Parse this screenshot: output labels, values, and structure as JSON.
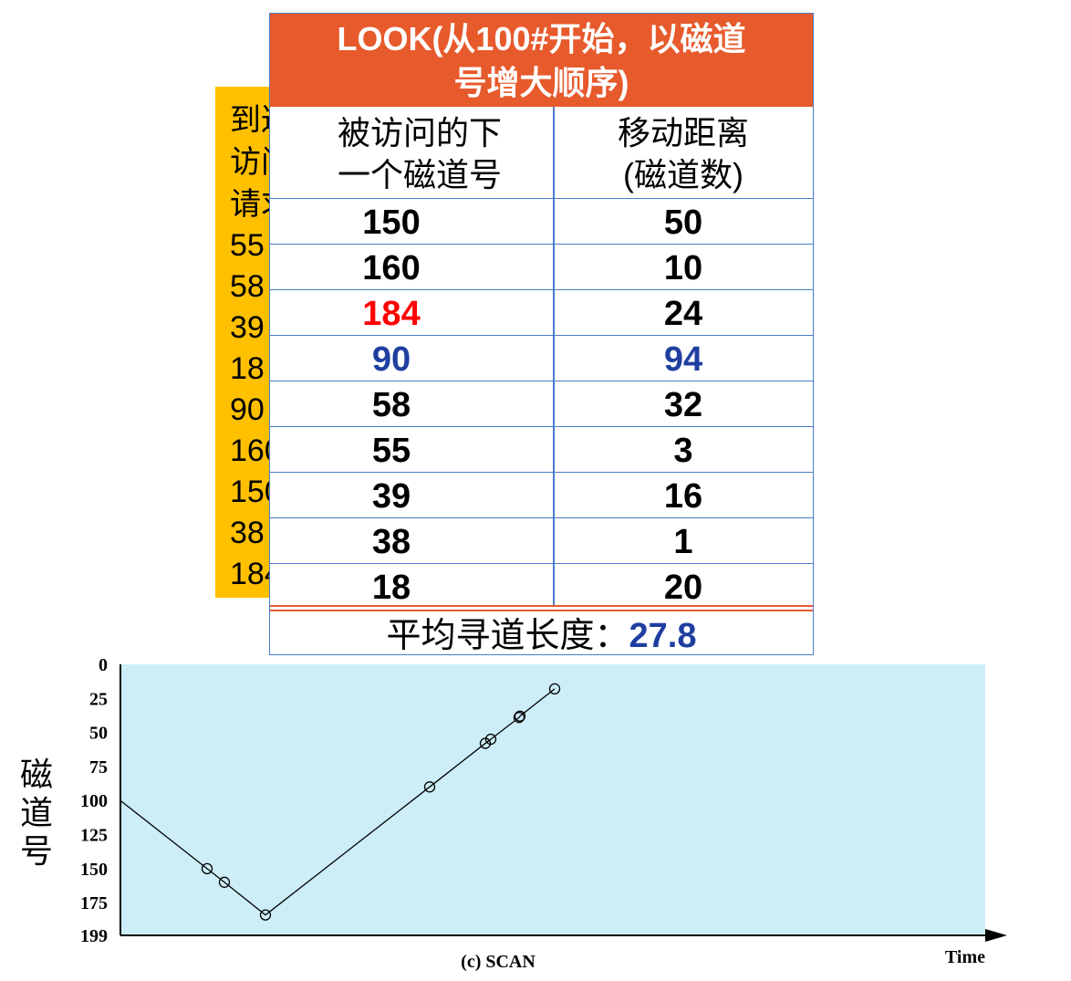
{
  "requests": {
    "header": "到达\n访问\n请求",
    "values": [
      "55",
      "58",
      "39",
      "18",
      "90",
      "160",
      "150",
      "38",
      "184"
    ]
  },
  "table": {
    "title": "LOOK(从100#开始，以磁道\n号增大顺序)",
    "col1_header": "被访问的下\n一个磁道号",
    "col2_header": "移动距离\n(磁道数)",
    "rows": [
      {
        "next": "150",
        "dist": "50",
        "next_color": "#000000",
        "dist_color": "#000000"
      },
      {
        "next": "160",
        "dist": "10",
        "next_color": "#000000",
        "dist_color": "#000000"
      },
      {
        "next": "184",
        "dist": "24",
        "next_color": "#FF0000",
        "dist_color": "#000000"
      },
      {
        "next": "90",
        "dist": "94",
        "next_color": "#1F3FA0",
        "dist_color": "#1F3FA0"
      },
      {
        "next": "58",
        "dist": "32",
        "next_color": "#000000",
        "dist_color": "#000000"
      },
      {
        "next": "55",
        "dist": "3",
        "next_color": "#000000",
        "dist_color": "#000000"
      },
      {
        "next": "39",
        "dist": "16",
        "next_color": "#000000",
        "dist_color": "#000000"
      },
      {
        "next": "38",
        "dist": "1",
        "next_color": "#000000",
        "dist_color": "#000000"
      },
      {
        "next": "18",
        "dist": "20",
        "next_color": "#000000",
        "dist_color": "#000000"
      }
    ],
    "avg_label": "平均寻道长度：",
    "avg_value": "27.8"
  },
  "chart_data": {
    "type": "line",
    "caption": "(c) SCAN",
    "xlabel": "Time",
    "ylabel": "磁道号",
    "y_ticks": [
      "0",
      "25",
      "50",
      "75",
      "100",
      "125",
      "150",
      "175",
      "199"
    ],
    "y_tick_values": [
      0,
      25,
      50,
      75,
      100,
      125,
      150,
      175,
      199
    ],
    "ylim": [
      0,
      199
    ],
    "y_inverted": true,
    "background": "#CDEEF8",
    "path": [
      {
        "t": 0,
        "track": 100,
        "marker": false
      },
      {
        "t": 1,
        "track": 150,
        "marker": true
      },
      {
        "t": 2,
        "track": 160,
        "marker": true
      },
      {
        "t": 3,
        "track": 184,
        "marker": true
      },
      {
        "t": 4,
        "track": 90,
        "marker": true
      },
      {
        "t": 5,
        "track": 58,
        "marker": true
      },
      {
        "t": 6,
        "track": 55,
        "marker": true
      },
      {
        "t": 7,
        "track": 39,
        "marker": true
      },
      {
        "t": 8,
        "track": 38,
        "marker": true
      },
      {
        "t": 9,
        "track": 18,
        "marker": true
      }
    ]
  }
}
